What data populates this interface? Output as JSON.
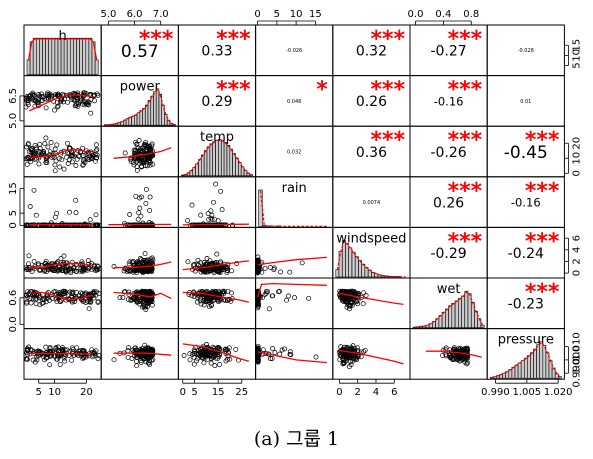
{
  "caption": "(a) 그룹 1",
  "colors": {
    "stars": "#ff0000",
    "smooth": "#ff0000",
    "density": "#ff0000",
    "hist_fill": "#cccccc",
    "points": "#000000"
  },
  "chart_data": {
    "type": "scatter-matrix",
    "variables": [
      "h",
      "power",
      "temp",
      "rain",
      "windspeed",
      "wet",
      "pressure"
    ],
    "ranges": [
      [
        1,
        24
      ],
      [
        4.8,
        7.6
      ],
      [
        -1,
        30
      ],
      [
        0,
        19
      ],
      [
        -0.5,
        7.5
      ],
      [
        -0.05,
        1.0
      ],
      [
        0.987,
        1.022
      ]
    ],
    "top_axes": [
      {
        "col": 1,
        "ticks": [
          5.0,
          6.0,
          7.0
        ],
        "labels": [
          "5.0",
          "6.0",
          "7.0"
        ]
      },
      {
        "col": 3,
        "ticks": [
          0,
          5,
          10,
          15
        ],
        "labels": [
          "0",
          "5",
          "10",
          "15"
        ]
      },
      {
        "col": 5,
        "ticks": [
          0.0,
          0.4,
          0.8
        ],
        "labels": [
          "0.0",
          "0.4",
          "0.8"
        ]
      }
    ],
    "bottom_axes": [
      {
        "col": 0,
        "ticks": [
          5,
          10,
          20
        ],
        "labels": [
          "5",
          "10",
          "20"
        ]
      },
      {
        "col": 2,
        "ticks": [
          0,
          5,
          15,
          25
        ],
        "labels": [
          "0",
          "5",
          "15",
          "25"
        ]
      },
      {
        "col": 4,
        "ticks": [
          0,
          2,
          4,
          6
        ],
        "labels": [
          "0",
          "2",
          "4",
          "6"
        ]
      },
      {
        "col": 6,
        "ticks": [
          0.99,
          1.005,
          1.02
        ],
        "labels": [
          "0.990",
          "1.005",
          "1.020"
        ]
      }
    ],
    "left_axes": [
      {
        "row": 1,
        "ticks": [
          5.0,
          6.5
        ],
        "labels": [
          "5.0",
          "6.5"
        ]
      },
      {
        "row": 3,
        "ticks": [
          0,
          5,
          15
        ],
        "labels": [
          "0",
          "5",
          "15"
        ]
      },
      {
        "row": 5,
        "ticks": [
          0.0,
          0.6
        ],
        "labels": [
          "0.0",
          "0.6"
        ]
      }
    ],
    "right_axes": [
      {
        "row": 0,
        "ticks": [
          5,
          10,
          15
        ],
        "labels": [
          "5",
          "10",
          "15"
        ]
      },
      {
        "row": 2,
        "ticks": [
          0,
          10,
          20
        ],
        "labels": [
          "0",
          "10",
          "20"
        ]
      },
      {
        "row": 4,
        "ticks": [
          0,
          2,
          4,
          6
        ],
        "labels": [
          "0",
          "2",
          "4",
          "6"
        ]
      },
      {
        "row": 6,
        "ticks": [
          0.99,
          1.0,
          1.01
        ],
        "labels": [
          "0.990",
          "1.000",
          "1.010"
        ]
      }
    ],
    "correlations": [
      {
        "row": 0,
        "col": 1,
        "r": "0.57",
        "stars": "***"
      },
      {
        "row": 0,
        "col": 2,
        "r": "0.33",
        "stars": "***"
      },
      {
        "row": 0,
        "col": 3,
        "r": "-0.026",
        "stars": ""
      },
      {
        "row": 0,
        "col": 4,
        "r": "0.32",
        "stars": "***"
      },
      {
        "row": 0,
        "col": 5,
        "r": "-0.27",
        "stars": "***"
      },
      {
        "row": 0,
        "col": 6,
        "r": "-0.028",
        "stars": ""
      },
      {
        "row": 1,
        "col": 2,
        "r": "0.29",
        "stars": "***"
      },
      {
        "row": 1,
        "col": 3,
        "r": "0.048",
        "stars": "*"
      },
      {
        "row": 1,
        "col": 4,
        "r": "0.26",
        "stars": "***"
      },
      {
        "row": 1,
        "col": 5,
        "r": "-0.16",
        "stars": "***"
      },
      {
        "row": 1,
        "col": 6,
        "r": "0.01",
        "stars": ""
      },
      {
        "row": 2,
        "col": 3,
        "r": "0.032",
        "stars": ""
      },
      {
        "row": 2,
        "col": 4,
        "r": "0.36",
        "stars": "***"
      },
      {
        "row": 2,
        "col": 5,
        "r": "-0.26",
        "stars": "***"
      },
      {
        "row": 2,
        "col": 6,
        "r": "-0.45",
        "stars": "***"
      },
      {
        "row": 3,
        "col": 4,
        "r": "0.0074",
        "stars": ""
      },
      {
        "row": 3,
        "col": 5,
        "r": "0.26",
        "stars": "***"
      },
      {
        "row": 3,
        "col": 6,
        "r": "-0.16",
        "stars": "***"
      },
      {
        "row": 4,
        "col": 5,
        "r": "-0.29",
        "stars": "***"
      },
      {
        "row": 4,
        "col": 6,
        "r": "-0.24",
        "stars": "***"
      },
      {
        "row": 5,
        "col": 6,
        "r": "-0.23",
        "stars": "***"
      }
    ],
    "histograms": [
      {
        "var": "h",
        "counts": [
          4,
          9,
          10,
          10,
          10,
          10,
          10,
          10,
          10,
          10,
          10,
          10,
          10,
          10,
          10,
          10,
          10,
          10,
          10,
          10,
          10,
          9,
          4
        ]
      },
      {
        "var": "power",
        "counts": [
          1,
          1,
          2,
          3,
          5,
          7,
          10,
          14,
          18,
          22,
          25,
          28,
          34,
          40,
          46,
          55,
          68,
          80,
          92,
          100,
          85,
          55,
          30,
          14,
          5,
          2
        ]
      },
      {
        "var": "temp",
        "counts": [
          2,
          4,
          8,
          14,
          22,
          32,
          44,
          56,
          68,
          78,
          86,
          92,
          96,
          98,
          95,
          90,
          82,
          72,
          60,
          48,
          36,
          24,
          14,
          7,
          3
        ]
      },
      {
        "var": "rain",
        "counts": [
          100,
          3,
          1,
          1,
          0,
          1,
          0,
          0,
          0,
          0,
          0,
          0,
          0,
          0,
          0,
          0,
          0,
          0,
          0
        ]
      },
      {
        "var": "windspeed",
        "counts": [
          20,
          70,
          100,
          92,
          80,
          68,
          56,
          45,
          35,
          26,
          19,
          13,
          9,
          6,
          4,
          3,
          2,
          1,
          1,
          1,
          0,
          0
        ]
      },
      {
        "var": "wet",
        "counts": [
          1,
          2,
          3,
          4,
          6,
          10,
          15,
          22,
          30,
          38,
          46,
          54,
          60,
          66,
          72,
          78,
          90,
          84,
          62,
          40,
          22,
          6
        ]
      },
      {
        "var": "pressure",
        "counts": [
          2,
          4,
          7,
          10,
          14,
          18,
          24,
          30,
          36,
          42,
          48,
          55,
          62,
          70,
          80,
          92,
          100,
          90,
          70,
          48,
          28,
          12,
          4
        ]
      }
    ],
    "smooth_fits": [
      {
        "row": 1,
        "col": 0,
        "x": [
          2,
          6,
          10,
          14,
          18,
          22
        ],
        "y": [
          5.6,
          5.95,
          6.3,
          6.55,
          6.55,
          6.45
        ]
      },
      {
        "row": 2,
        "col": 0,
        "x": [
          2,
          6,
          10,
          14,
          18,
          22
        ],
        "y": [
          10.5,
          11.0,
          12.5,
          15.5,
          15.5,
          13.0
        ]
      },
      {
        "row": 3,
        "col": 0,
        "x": [
          2,
          22
        ],
        "y": [
          0.3,
          0.3
        ]
      },
      {
        "row": 4,
        "col": 0,
        "x": [
          2,
          6,
          10,
          14,
          18,
          22
        ],
        "y": [
          0.9,
          1.0,
          1.4,
          1.7,
          1.6,
          1.3
        ]
      },
      {
        "row": 5,
        "col": 0,
        "x": [
          2,
          6,
          10,
          14,
          18,
          22
        ],
        "y": [
          0.7,
          0.72,
          0.65,
          0.55,
          0.58,
          0.66
        ]
      },
      {
        "row": 6,
        "col": 0,
        "x": [
          2,
          22
        ],
        "y": [
          1.0048,
          1.0045
        ]
      },
      {
        "row": 2,
        "col": 1,
        "x": [
          5.2,
          5.8,
          6.4,
          7.0,
          7.4
        ],
        "y": [
          10,
          11,
          12.5,
          14.5,
          17
        ]
      },
      {
        "row": 3,
        "col": 1,
        "x": [
          5.0,
          7.4
        ],
        "y": [
          0.3,
          0.4
        ]
      },
      {
        "row": 4,
        "col": 1,
        "x": [
          5.2,
          6.0,
          6.6,
          7.0,
          7.4
        ],
        "y": [
          0.9,
          1.0,
          1.2,
          1.5,
          1.9
        ]
      },
      {
        "row": 5,
        "col": 1,
        "x": [
          5.2,
          6.0,
          6.6,
          7.0,
          7.4
        ],
        "y": [
          0.72,
          0.68,
          0.62,
          0.7,
          0.58
        ]
      },
      {
        "row": 6,
        "col": 1,
        "x": [
          5.2,
          6.4,
          7.4
        ],
        "y": [
          1.005,
          1.0052,
          1.0035
        ]
      },
      {
        "row": 3,
        "col": 2,
        "x": [
          0,
          28
        ],
        "y": [
          0.2,
          0.5
        ]
      },
      {
        "row": 4,
        "col": 2,
        "x": [
          0,
          8,
          16,
          24,
          28
        ],
        "y": [
          0.6,
          0.9,
          1.4,
          1.9,
          2.1
        ]
      },
      {
        "row": 5,
        "col": 2,
        "x": [
          0,
          8,
          16,
          24,
          28
        ],
        "y": [
          0.72,
          0.7,
          0.62,
          0.55,
          0.5
        ]
      },
      {
        "row": 6,
        "col": 2,
        "x": [
          0,
          8,
          16,
          24,
          28
        ],
        "y": [
          1.012,
          1.01,
          1.006,
          1.001,
          0.999
        ]
      },
      {
        "row": 4,
        "col": 3,
        "x": [
          0,
          4,
          10,
          18
        ],
        "y": [
          1.4,
          1.8,
          2.3,
          2.7
        ]
      },
      {
        "row": 5,
        "col": 3,
        "x": [
          0,
          1,
          4,
          10,
          18
        ],
        "y": [
          0.62,
          0.9,
          0.92,
          0.9,
          0.88
        ]
      },
      {
        "row": 6,
        "col": 3,
        "x": [
          0,
          5,
          10,
          18
        ],
        "y": [
          1.006,
          1.003,
          1.0,
          0.998
        ]
      },
      {
        "row": 5,
        "col": 4,
        "x": [
          0,
          2,
          4,
          6,
          7
        ],
        "y": [
          0.7,
          0.62,
          0.55,
          0.48,
          0.45
        ]
      },
      {
        "row": 6,
        "col": 4,
        "x": [
          0,
          2,
          4,
          6,
          7
        ],
        "y": [
          1.007,
          1.005,
          1.002,
          0.999,
          0.997
        ]
      },
      {
        "row": 6,
        "col": 5,
        "x": [
          0.15,
          0.4,
          0.6,
          0.8,
          0.95
        ],
        "y": [
          1.0065,
          1.0065,
          1.0055,
          1.004,
          1.002
        ]
      }
    ]
  }
}
